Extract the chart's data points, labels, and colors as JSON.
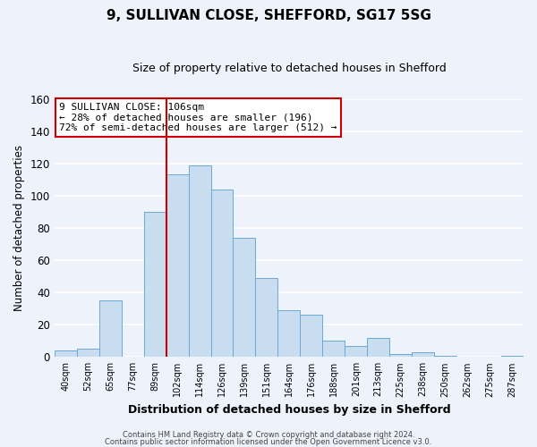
{
  "title": "9, SULLIVAN CLOSE, SHEFFORD, SG17 5SG",
  "subtitle": "Size of property relative to detached houses in Shefford",
  "xlabel": "Distribution of detached houses by size in Shefford",
  "ylabel": "Number of detached properties",
  "bar_color": "#c9ddf0",
  "bar_edge_color": "#6aaad4",
  "background_color": "#eef2fb",
  "grid_color": "#ffffff",
  "categories": [
    "40sqm",
    "52sqm",
    "65sqm",
    "77sqm",
    "89sqm",
    "102sqm",
    "114sqm",
    "126sqm",
    "139sqm",
    "151sqm",
    "164sqm",
    "176sqm",
    "188sqm",
    "201sqm",
    "213sqm",
    "225sqm",
    "238sqm",
    "250sqm",
    "262sqm",
    "275sqm",
    "287sqm"
  ],
  "values": [
    4,
    5,
    35,
    0,
    90,
    113,
    119,
    104,
    74,
    49,
    29,
    26,
    10,
    7,
    12,
    2,
    3,
    1,
    0,
    0,
    1
  ],
  "bin_edges_count": 21,
  "ylim": [
    0,
    160
  ],
  "yticks": [
    0,
    20,
    40,
    60,
    80,
    100,
    120,
    140,
    160
  ],
  "vline_index": 5,
  "vline_color": "#cc0000",
  "annotation_title": "9 SULLIVAN CLOSE: 106sqm",
  "annotation_line2": "← 28% of detached houses are smaller (196)",
  "annotation_line3": "72% of semi-detached houses are larger (512) →",
  "annotation_box_facecolor": "#ffffff",
  "annotation_box_edgecolor": "#cc0000",
  "footnote1": "Contains HM Land Registry data © Crown copyright and database right 2024.",
  "footnote2": "Contains public sector information licensed under the Open Government Licence v3.0."
}
